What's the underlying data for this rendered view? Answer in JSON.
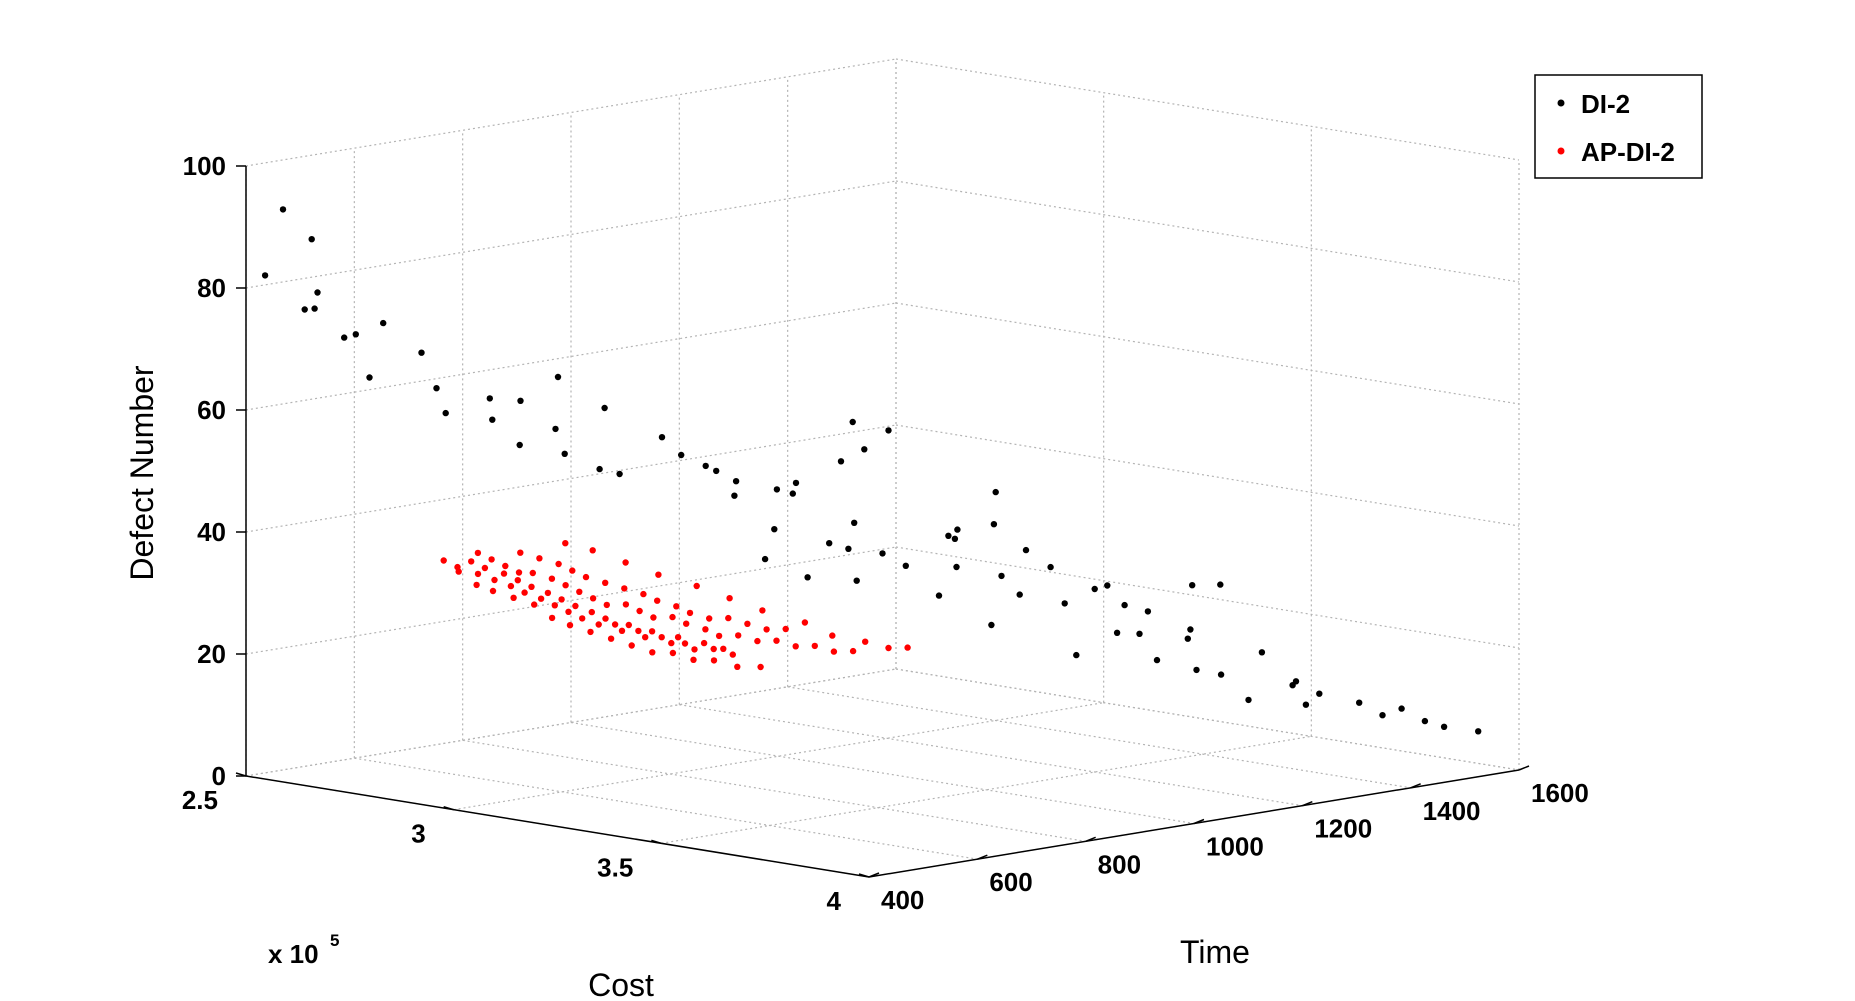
{
  "chart_data": {
    "type": "scatter",
    "projection": "3d",
    "grid": true,
    "legend_position": "top-right",
    "xlabel": "Cost",
    "ylabel": "Time",
    "zlabel": "Defect Number",
    "x_multiplier_text": "x 10",
    "x_multiplier_exp": "5",
    "xlim": [
      2.5,
      4.0
    ],
    "ylim": [
      400,
      1600
    ],
    "zlim": [
      0,
      100
    ],
    "x_ticks": [
      "2.5",
      "3",
      "3.5",
      "4"
    ],
    "y_ticks": [
      "400",
      "600",
      "800",
      "1000",
      "1200",
      "1400",
      "1600"
    ],
    "z_ticks": [
      "0",
      "20",
      "40",
      "60",
      "80",
      "100"
    ],
    "colors": {
      "DI-2": "#000000",
      "AP-DI-2": "#ff0000"
    },
    "series": [
      {
        "name": "DI-2",
        "color": "#000000",
        "points": [
          [
            2.55,
            430,
            93
          ],
          [
            2.58,
            460,
            88
          ],
          [
            2.62,
            440,
            80
          ],
          [
            2.52,
            420,
            82
          ],
          [
            2.6,
            450,
            77
          ],
          [
            2.55,
            470,
            76
          ],
          [
            2.7,
            500,
            75
          ],
          [
            2.66,
            480,
            73
          ],
          [
            2.58,
            520,
            71
          ],
          [
            2.74,
            540,
            70
          ],
          [
            2.68,
            490,
            66
          ],
          [
            2.75,
            560,
            64
          ],
          [
            2.9,
            600,
            63
          ],
          [
            2.86,
            700,
            65
          ],
          [
            2.8,
            620,
            62
          ],
          [
            2.72,
            600,
            59
          ],
          [
            2.78,
            640,
            58
          ],
          [
            2.88,
            680,
            57
          ],
          [
            2.82,
            660,
            54
          ],
          [
            2.85,
            720,
            52
          ],
          [
            2.96,
            700,
            51
          ],
          [
            2.93,
            760,
            49
          ],
          [
            2.98,
            800,
            55
          ],
          [
            3.0,
            820,
            52
          ],
          [
            3.02,
            850,
            50
          ],
          [
            3.05,
            880,
            45
          ],
          [
            3.08,
            860,
            48
          ],
          [
            3.1,
            920,
            46
          ],
          [
            3.12,
            940,
            47
          ],
          [
            3.06,
            980,
            44
          ],
          [
            3.15,
            1000,
            50
          ],
          [
            3.18,
            1020,
            52
          ],
          [
            3.12,
            900,
            40
          ],
          [
            3.2,
            940,
            38
          ],
          [
            3.22,
            960,
            37
          ],
          [
            3.25,
            1000,
            36
          ],
          [
            3.28,
            1020,
            34
          ],
          [
            3.24,
            960,
            32
          ],
          [
            3.2,
            900,
            33
          ],
          [
            3.15,
            860,
            36
          ],
          [
            3.3,
            1100,
            39
          ],
          [
            3.32,
            1080,
            38
          ],
          [
            3.35,
            1060,
            34
          ],
          [
            3.38,
            1120,
            32
          ],
          [
            3.4,
            1150,
            36
          ],
          [
            3.42,
            1180,
            33
          ],
          [
            3.36,
            1020,
            30
          ],
          [
            3.45,
            1100,
            30
          ],
          [
            3.48,
            1160,
            28
          ],
          [
            3.5,
            1200,
            30
          ],
          [
            3.52,
            1240,
            27
          ],
          [
            3.55,
            1260,
            26
          ],
          [
            3.46,
            1040,
            26
          ],
          [
            3.58,
            1180,
            24
          ],
          [
            3.6,
            1300,
            23
          ],
          [
            3.62,
            1280,
            22
          ],
          [
            3.56,
            1120,
            21
          ],
          [
            3.65,
            1200,
            20
          ],
          [
            3.68,
            1250,
            18
          ],
          [
            3.7,
            1280,
            17
          ],
          [
            3.72,
            1340,
            20
          ],
          [
            3.75,
            1380,
            15
          ],
          [
            3.78,
            1400,
            13
          ],
          [
            3.8,
            1360,
            12
          ],
          [
            3.85,
            1420,
            12
          ],
          [
            3.88,
            1440,
            10
          ],
          [
            3.9,
            1460,
            11
          ],
          [
            3.93,
            1480,
            9
          ],
          [
            3.95,
            1500,
            8
          ],
          [
            3.82,
            1320,
            16
          ],
          [
            3.74,
            1300,
            13
          ],
          [
            3.66,
            1160,
            25
          ],
          [
            3.44,
            1060,
            42
          ],
          [
            3.26,
            940,
            42
          ],
          [
            3.34,
            1140,
            45
          ],
          [
            2.92,
            740,
            60
          ],
          [
            3.2,
            1160,
            36
          ],
          [
            3.98,
            1540,
            7
          ],
          [
            2.98,
            900,
            48
          ],
          [
            3.1,
            1060,
            55
          ],
          [
            3.16,
            1080,
            54
          ],
          [
            3.62,
            1340,
            30
          ],
          [
            3.5,
            1380,
            28
          ],
          [
            3.4,
            1300,
            28
          ]
        ]
      },
      {
        "name": "AP-DI-2",
        "color": "#ff0000",
        "points": [
          [
            2.95,
            420,
            40
          ],
          [
            2.97,
            430,
            39
          ],
          [
            2.99,
            440,
            40
          ],
          [
            3.0,
            445,
            38
          ],
          [
            3.01,
            450,
            39
          ],
          [
            3.02,
            460,
            37
          ],
          [
            3.03,
            470,
            38
          ],
          [
            3.04,
            475,
            36
          ],
          [
            3.05,
            480,
            37
          ],
          [
            3.06,
            485,
            35
          ],
          [
            3.07,
            490,
            36
          ],
          [
            3.08,
            500,
            34
          ],
          [
            3.09,
            505,
            35
          ],
          [
            3.1,
            510,
            33
          ],
          [
            3.11,
            515,
            34
          ],
          [
            3.12,
            520,
            32
          ],
          [
            3.13,
            525,
            33
          ],
          [
            3.14,
            530,
            31
          ],
          [
            3.15,
            540,
            32
          ],
          [
            3.16,
            545,
            30
          ],
          [
            3.17,
            550,
            31
          ],
          [
            3.18,
            560,
            30
          ],
          [
            3.19,
            565,
            29
          ],
          [
            3.2,
            570,
            30
          ],
          [
            3.21,
            580,
            29
          ],
          [
            3.22,
            585,
            28
          ],
          [
            3.23,
            590,
            29
          ],
          [
            3.24,
            600,
            28
          ],
          [
            3.25,
            610,
            27
          ],
          [
            3.26,
            615,
            28
          ],
          [
            3.27,
            620,
            27
          ],
          [
            3.28,
            630,
            26
          ],
          [
            3.29,
            640,
            27
          ],
          [
            3.3,
            650,
            26
          ],
          [
            3.31,
            660,
            26
          ],
          [
            3.32,
            670,
            25
          ],
          [
            2.98,
            460,
            41
          ],
          [
            3.0,
            470,
            40
          ],
          [
            3.02,
            480,
            39
          ],
          [
            3.04,
            490,
            38
          ],
          [
            3.06,
            500,
            38
          ],
          [
            3.08,
            520,
            37
          ],
          [
            3.1,
            530,
            36
          ],
          [
            3.12,
            540,
            35
          ],
          [
            3.14,
            550,
            34
          ],
          [
            3.16,
            560,
            33
          ],
          [
            3.18,
            580,
            33
          ],
          [
            3.2,
            590,
            32
          ],
          [
            3.22,
            600,
            31
          ],
          [
            3.24,
            620,
            31
          ],
          [
            3.26,
            630,
            30
          ],
          [
            3.28,
            650,
            29
          ],
          [
            3.3,
            660,
            28
          ],
          [
            3.32,
            680,
            28
          ],
          [
            3.34,
            700,
            27
          ],
          [
            3.36,
            720,
            27
          ],
          [
            3.38,
            740,
            26
          ],
          [
            3.4,
            760,
            26
          ],
          [
            3.42,
            780,
            25
          ],
          [
            3.44,
            800,
            25
          ],
          [
            3.03,
            500,
            41
          ],
          [
            3.05,
            520,
            40
          ],
          [
            3.07,
            540,
            39
          ],
          [
            3.09,
            550,
            38
          ],
          [
            3.11,
            560,
            37
          ],
          [
            3.13,
            580,
            36
          ],
          [
            3.15,
            600,
            35
          ],
          [
            3.17,
            620,
            34
          ],
          [
            3.19,
            630,
            33
          ],
          [
            3.21,
            650,
            32
          ],
          [
            3.23,
            660,
            31
          ],
          [
            3.25,
            680,
            30
          ],
          [
            3.27,
            700,
            30
          ],
          [
            3.29,
            720,
            29
          ],
          [
            3.31,
            740,
            28
          ],
          [
            3.33,
            760,
            28
          ],
          [
            2.96,
            440,
            38
          ],
          [
            2.99,
            450,
            36
          ],
          [
            3.01,
            465,
            35
          ],
          [
            3.04,
            480,
            34
          ],
          [
            3.07,
            495,
            33
          ],
          [
            3.1,
            505,
            31
          ],
          [
            3.13,
            515,
            30
          ],
          [
            3.16,
            530,
            29
          ],
          [
            3.19,
            545,
            28
          ],
          [
            3.22,
            560,
            27
          ],
          [
            3.25,
            575,
            26
          ],
          [
            3.28,
            590,
            26
          ],
          [
            3.31,
            605,
            25
          ],
          [
            3.34,
            620,
            25
          ],
          [
            3.37,
            640,
            24
          ],
          [
            3.4,
            660,
            24
          ],
          [
            3.06,
            560,
            42
          ],
          [
            3.1,
            580,
            41
          ],
          [
            3.14,
            610,
            39
          ],
          [
            3.18,
            640,
            37
          ],
          [
            3.22,
            680,
            35
          ],
          [
            3.26,
            710,
            33
          ],
          [
            3.3,
            740,
            31
          ],
          [
            3.35,
            780,
            29
          ],
          [
            3.39,
            800,
            27
          ],
          [
            3.43,
            830,
            26
          ],
          [
            3.46,
            850,
            25
          ],
          [
            3.48,
            870,
            25
          ]
        ]
      }
    ]
  }
}
